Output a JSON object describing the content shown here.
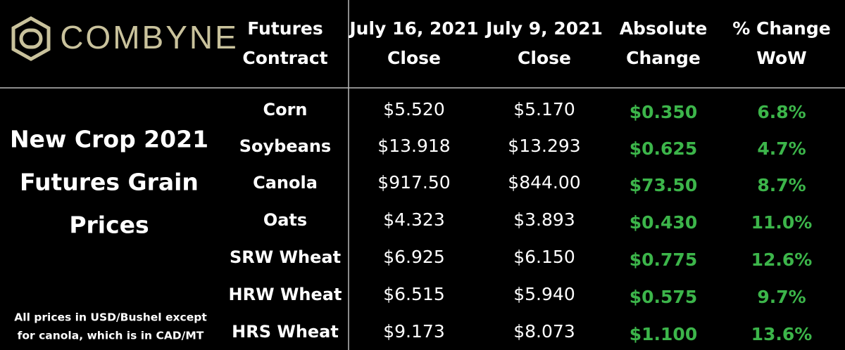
{
  "logo": "COMBYNE",
  "table": {
    "headers": [
      [
        "Futures",
        "Contract"
      ],
      [
        "July 16, 2021",
        "Close"
      ],
      [
        "July 9, 2021",
        "Close"
      ],
      [
        "Absolute",
        "Change"
      ],
      [
        "% Change",
        "WoW"
      ]
    ],
    "rows": [
      [
        "Corn",
        "$5.520",
        "$5.170",
        "$0.350",
        "6.8%"
      ],
      [
        "Soybeans",
        "$13.918",
        "$13.293",
        "$0.625",
        "4.7%"
      ],
      [
        "Canola",
        "$917.50",
        "$844.00",
        "$73.50",
        "8.7%"
      ],
      [
        "Oats",
        "$4.323",
        "$3.893",
        "$0.430",
        "11.0%"
      ],
      [
        "SRW Wheat",
        "$6.925",
        "$6.150",
        "$0.775",
        "12.6%"
      ],
      [
        "HRW Wheat",
        "$6.515",
        "$5.940",
        "$0.575",
        "9.7%"
      ],
      [
        "HRS Wheat",
        "$9.173",
        "$8.073",
        "$1.100",
        "13.6%"
      ]
    ]
  },
  "side_title": [
    "New Crop 2021",
    "Futures Grain",
    "Prices"
  ],
  "note": [
    "All prices in USD/Bushel except",
    "for canola, which is in CAD/MT"
  ]
}
